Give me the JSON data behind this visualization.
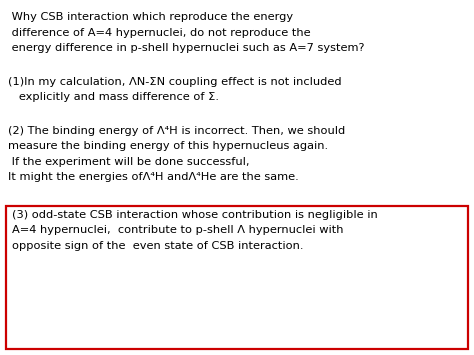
{
  "background_color": "#ffffff",
  "title_lines": [
    " Why CSB interaction which reproduce the energy",
    " difference of A=4 hypernuclei, do not reproduce the",
    " energy difference in p-shell hypernuclei such as A=7 system?"
  ],
  "item1_line1": "(1)In my calculation, ΛN-ΣN coupling effect is not included",
  "item1_line2": "   explicitly and mass difference of Σ.",
  "item2_line1": "(2) The binding energy of Λ⁴H is incorrect. Then, we should",
  "item2_line2": "measure the binding energy of this hypernucleus again.",
  "item2_line3": " If the experiment will be done successful,",
  "item2_line4": "It might the energies ofΛ⁴H andΛ⁴He are the same.",
  "item3_line1": "(3) odd-state CSB interaction whose contribution is negligible in",
  "item3_line2": "A=4 hypernuclei,  contribute to p-shell Λ hypernuclei with",
  "item3_line3": "opposite sign of the  even state of CSB interaction.",
  "box_color": "#cc0000",
  "text_color": "#000000",
  "font_size": 8.2
}
